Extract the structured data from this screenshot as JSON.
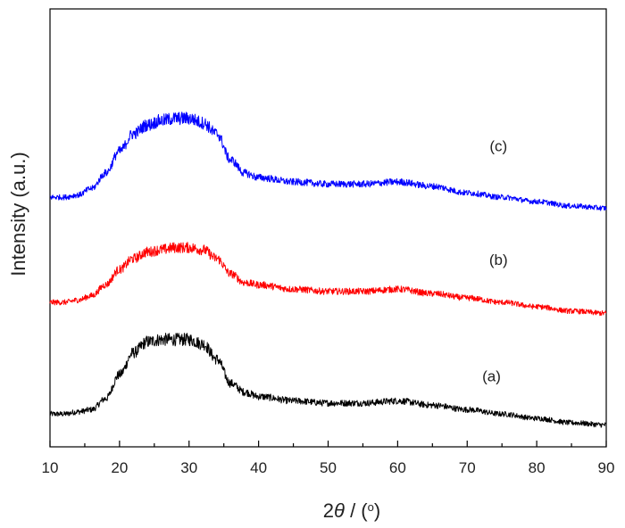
{
  "chart_data": {
    "type": "line",
    "xlabel_prefix": "2",
    "xlabel_symbol": "θ",
    "xlabel_suffix": " / (",
    "xlabel_unit": "o",
    "xlabel_close": ")",
    "ylabel": "Intensity (a.u.)",
    "xlim": [
      10,
      90
    ],
    "xticks": [
      "10",
      "20",
      "30",
      "40",
      "50",
      "60",
      "70",
      "80",
      "90"
    ],
    "minor_xtick_step": 5,
    "ylim": [
      0,
      1
    ],
    "grid": false,
    "series": [
      {
        "label": "(a)",
        "color": "#000000",
        "label_at": [
          73.5,
          0.15
        ],
        "x": [
          10,
          12,
          14,
          16,
          18,
          20,
          22,
          24,
          26,
          28,
          30,
          32,
          34,
          36,
          38,
          40,
          45,
          50,
          55,
          60,
          65,
          70,
          75,
          80,
          85,
          90
        ],
        "y": [
          0.075,
          0.075,
          0.08,
          0.085,
          0.11,
          0.165,
          0.215,
          0.24,
          0.245,
          0.245,
          0.245,
          0.235,
          0.2,
          0.145,
          0.125,
          0.115,
          0.105,
          0.1,
          0.1,
          0.105,
          0.095,
          0.085,
          0.075,
          0.065,
          0.055,
          0.05
        ]
      },
      {
        "label": "(b)",
        "color": "#ff0000",
        "label_at": [
          74.5,
          0.415
        ],
        "x": [
          10,
          12,
          14,
          16,
          18,
          20,
          22,
          24,
          26,
          28,
          30,
          32,
          34,
          36,
          38,
          40,
          45,
          50,
          55,
          60,
          65,
          70,
          75,
          80,
          85,
          90
        ],
        "y": [
          0.33,
          0.33,
          0.335,
          0.345,
          0.37,
          0.405,
          0.43,
          0.445,
          0.45,
          0.455,
          0.455,
          0.45,
          0.43,
          0.395,
          0.375,
          0.37,
          0.36,
          0.355,
          0.355,
          0.36,
          0.35,
          0.34,
          0.33,
          0.32,
          0.31,
          0.305
        ]
      },
      {
        "label": "(c)",
        "color": "#0000ff",
        "label_at": [
          74.5,
          0.675
        ],
        "x": [
          10,
          12,
          14,
          16,
          18,
          20,
          22,
          24,
          26,
          28,
          30,
          32,
          34,
          36,
          38,
          40,
          45,
          50,
          55,
          60,
          65,
          70,
          75,
          80,
          85,
          90
        ],
        "y": [
          0.57,
          0.57,
          0.575,
          0.59,
          0.625,
          0.675,
          0.715,
          0.735,
          0.745,
          0.75,
          0.75,
          0.74,
          0.715,
          0.655,
          0.625,
          0.615,
          0.605,
          0.6,
          0.6,
          0.605,
          0.595,
          0.58,
          0.57,
          0.56,
          0.55,
          0.545
        ]
      }
    ]
  }
}
